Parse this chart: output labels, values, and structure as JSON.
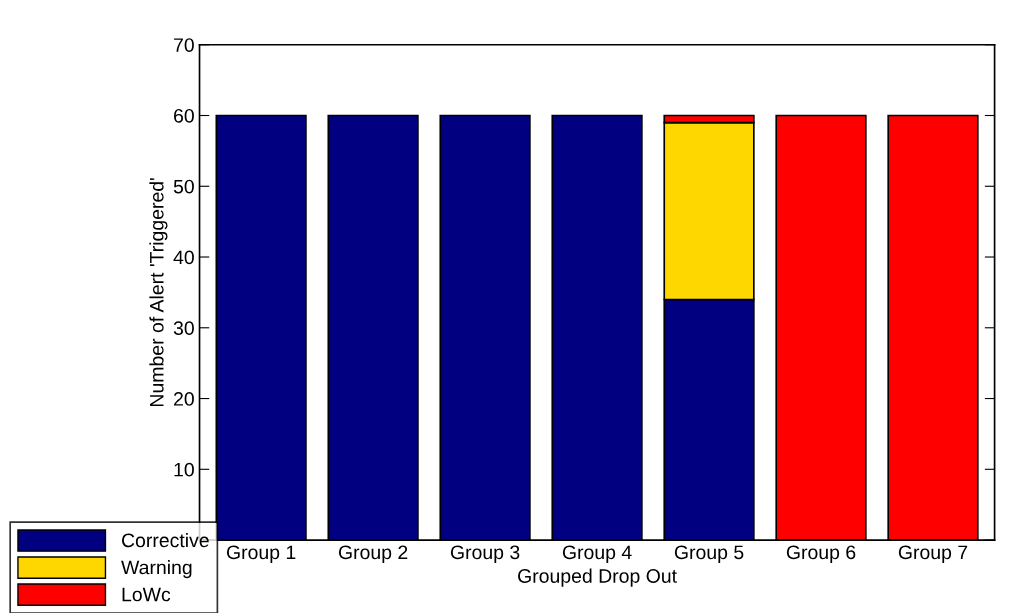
{
  "chart_data": {
    "type": "bar",
    "stacked": true,
    "xlabel": "Grouped Drop Out",
    "ylabel": "Number of Alert 'Triggered'",
    "categories": [
      "Group 1",
      "Group 2",
      "Group 3",
      "Group 4",
      "Group 5",
      "Group 6",
      "Group 7"
    ],
    "series": [
      {
        "name": "Corrective",
        "color": "#000080",
        "values": [
          60,
          60,
          60,
          60,
          34,
          null,
          null
        ]
      },
      {
        "name": "Warning",
        "color": "#ffd700",
        "values": [
          null,
          null,
          null,
          null,
          25,
          null,
          null
        ]
      },
      {
        "name": "LoWc",
        "color": "#ff0000",
        "values": [
          null,
          null,
          null,
          null,
          1,
          60,
          60
        ]
      }
    ],
    "ylim": [
      0,
      70
    ],
    "yticks": [
      {
        "value": 0,
        "label": null
      },
      10,
      20,
      30,
      40,
      50,
      60,
      70
    ],
    "grid": false,
    "legend": "bottom left"
  }
}
